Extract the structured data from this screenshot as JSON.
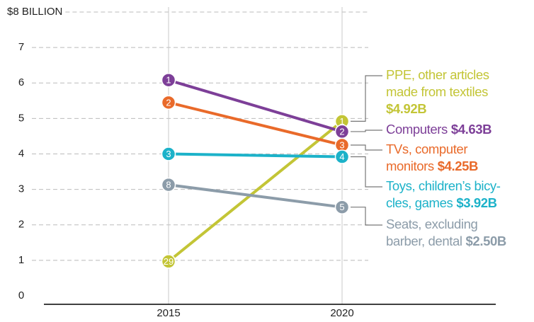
{
  "chart_data": {
    "type": "slope",
    "categories": [
      "2015",
      "2020"
    ],
    "ylim": [
      0,
      8
    ],
    "yticks": [
      0,
      1,
      2,
      3,
      4,
      5,
      6,
      7,
      {
        "value": 8,
        "label": "$8 BILLION"
      }
    ],
    "grid": true,
    "series": [
      {
        "name": [
          "PPE, other articles",
          "made from textiles"
        ],
        "color": "#c3c536",
        "values": [
          0.97,
          4.92
        ],
        "value_labels": [
          null,
          "$4.92B"
        ],
        "ranks": [
          29,
          1
        ]
      },
      {
        "name": [
          "Computers"
        ],
        "color": "#7d3f98",
        "values": [
          6.08,
          4.63
        ],
        "value_labels": [
          null,
          "$4.63B"
        ],
        "ranks": [
          1,
          2
        ]
      },
      {
        "name": [
          "TVs, computer",
          "monitors"
        ],
        "color": "#e96a2a",
        "values": [
          5.45,
          4.25
        ],
        "value_labels": [
          null,
          "$4.25B"
        ],
        "ranks": [
          2,
          3
        ]
      },
      {
        "name": [
          "Toys, children’s bicy-",
          "cles, games"
        ],
        "color": "#1cb2c9",
        "values": [
          4.0,
          3.92
        ],
        "value_labels": [
          null,
          "$3.92B"
        ],
        "ranks": [
          3,
          4
        ]
      },
      {
        "name": [
          "Seats, excluding",
          "barber, dental"
        ],
        "color": "#8c9ca9",
        "values": [
          3.13,
          2.5
        ],
        "value_labels": [
          null,
          "$2.50B"
        ],
        "ranks": [
          8,
          5
        ]
      }
    ]
  }
}
